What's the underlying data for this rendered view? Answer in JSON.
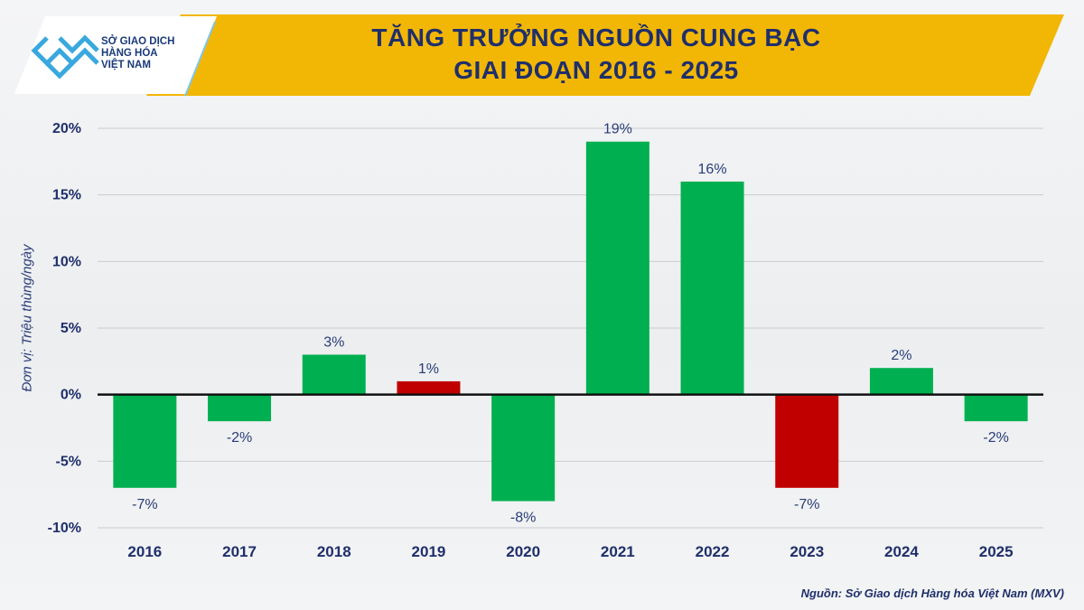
{
  "header": {
    "logo_lines": [
      "SỞ GIAO DỊCH",
      "HÀNG HÓA",
      "VIỆT NAM"
    ],
    "title_line1": "TĂNG TRƯỞNG NGUỒN CUNG BẠC",
    "title_line2": "GIAI ĐOẠN 2016 - 2025"
  },
  "footer": {
    "source": "Nguồn: Sở Giao dịch Hàng hóa Việt Nam (MXV)"
  },
  "colors": {
    "header_yellow": "#f2b705",
    "bar_positive_green": "#00b050",
    "bar_highlight_red": "#c00000",
    "text_navy": "#1f2f6b"
  },
  "chart_data": {
    "type": "bar",
    "title": "TĂNG TRƯỞNG NGUỒN CUNG BẠC GIAI ĐOẠN 2016 - 2025",
    "ylabel": "Đơn vị: Triệu thùng/ngày",
    "xlabel": "",
    "categories": [
      "2016",
      "2017",
      "2018",
      "2019",
      "2020",
      "2021",
      "2022",
      "2023",
      "2024",
      "2025"
    ],
    "values": [
      -7,
      -2,
      3,
      1,
      -8,
      19,
      16,
      -7,
      2,
      -2
    ],
    "value_labels": [
      "-7%",
      "-2%",
      "3%",
      "1%",
      "-8%",
      "19%",
      "16%",
      "-7%",
      "2%",
      "-2%"
    ],
    "bar_colors": [
      "#00b050",
      "#00b050",
      "#00b050",
      "#c00000",
      "#00b050",
      "#00b050",
      "#00b050",
      "#c00000",
      "#00b050",
      "#00b050"
    ],
    "ylim": [
      -10,
      20
    ],
    "yticks": [
      -10,
      -5,
      0,
      5,
      10,
      15,
      20
    ],
    "ytick_labels": [
      "-10%",
      "-5%",
      "0%",
      "5%",
      "10%",
      "15%",
      "20%"
    ],
    "grid": true,
    "legend": "none"
  }
}
